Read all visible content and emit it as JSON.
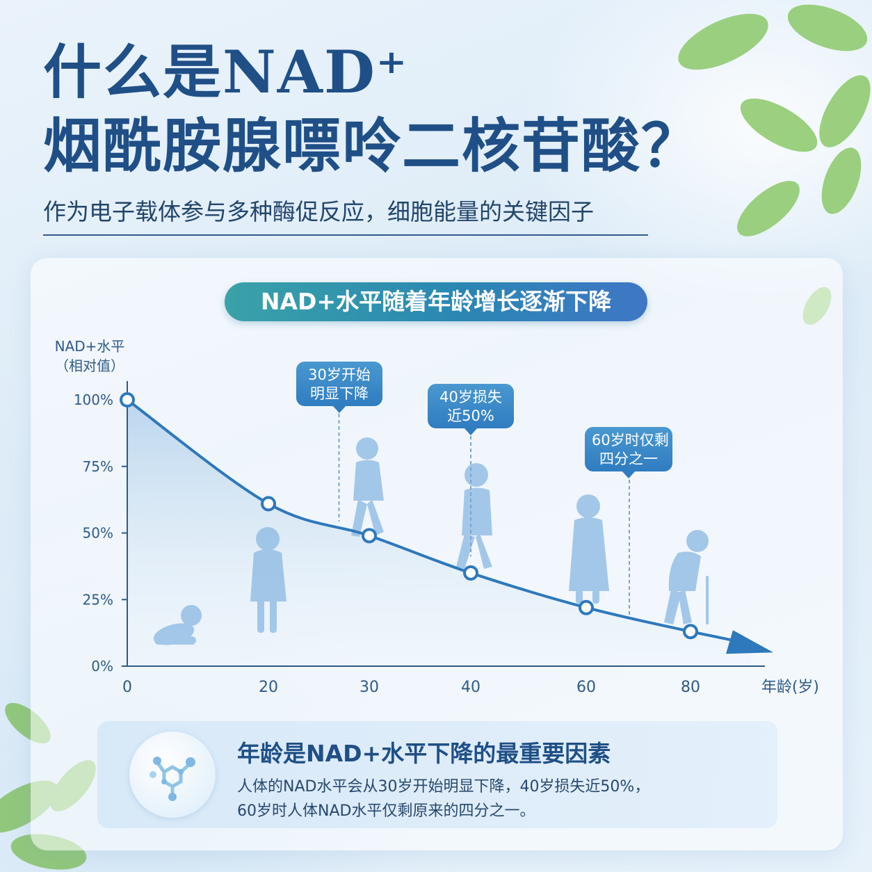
{
  "header": {
    "title_line1": "什么是NAD⁺",
    "title_line2": "烟酰胺腺嘌呤二核苷酸？",
    "subtitle": "作为电子载体参与多种酶促反应，细胞能量的关键因子"
  },
  "chart_data": {
    "type": "line",
    "title": "NAD+水平随着年龄增长逐渐下降",
    "ylabel_line1": "NAD+水平",
    "ylabel_line2": "（相对值）",
    "xlabel": "年龄(岁)",
    "xticks": [
      "0",
      "20",
      "30",
      "40",
      "60",
      "80"
    ],
    "yticks": [
      "100%",
      "75%",
      "50%",
      "25%",
      "0%"
    ],
    "ylim": [
      0,
      100
    ],
    "x": [
      0,
      20,
      30,
      40,
      60,
      80
    ],
    "values": [
      100,
      61,
      49,
      35,
      22,
      13
    ],
    "annotations": [
      {
        "line1": "30岁开始",
        "line2": "明显下降"
      },
      {
        "line1": "40岁损失",
        "line2": "近50%"
      },
      {
        "line1": "60岁时仅剩",
        "line2": "四分之一"
      }
    ],
    "colors": {
      "line": "#2e78bc",
      "axis": "#2f5a88",
      "fill": "#bcd8ef"
    }
  },
  "info": {
    "title": "年龄是NAD+水平下降的最重要因素",
    "line1": "人体的NAD水平会从30岁开始明显下降，40岁损失近50%，",
    "line2": "60岁时人体NAD水平仅剩原来的四分之一。",
    "icon": "molecule-icon"
  }
}
